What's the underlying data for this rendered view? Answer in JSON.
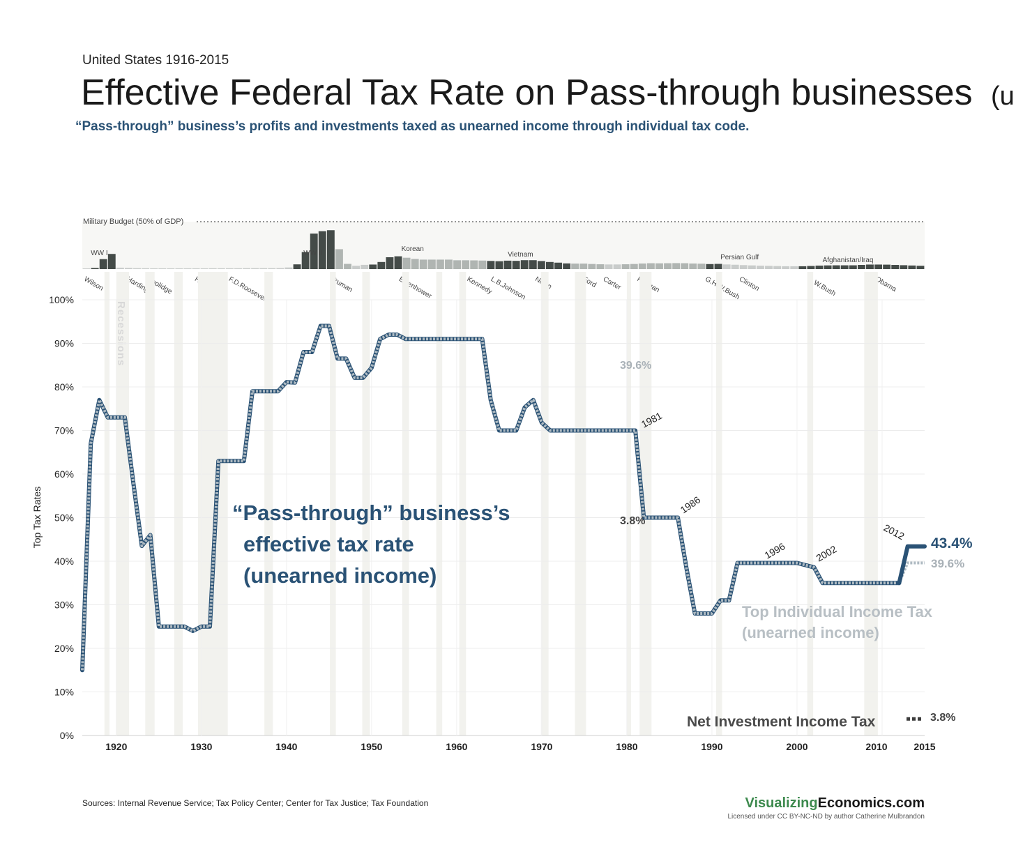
{
  "header": {
    "supertitle": "United States 1916-2015",
    "title": "Effective Federal Tax Rate on Pass-through businesses",
    "title_suffix": "(unearned)",
    "subtitle": "“Pass-through” business’s profits and investments taxed as unearned income through individual tax code."
  },
  "chart_data": {
    "type": "line",
    "title": "Effective Federal Tax Rate on Pass-through businesses (unearned)",
    "ylabel": "Top Tax Rates",
    "xlabel": "",
    "xlim": [
      1916,
      2015
    ],
    "ylim": [
      0,
      100
    ],
    "x_ticks": [
      1920,
      1930,
      1940,
      1950,
      1960,
      1970,
      1980,
      1990,
      2000,
      2010,
      2015
    ],
    "y_ticks": [
      "0%",
      "10%",
      "20%",
      "30%",
      "40%",
      "50%",
      "60%",
      "70%",
      "80%",
      "90%",
      "100%"
    ],
    "series": [
      {
        "name": "Top Individual Income Tax (unearned income)",
        "color": "#aebac2",
        "points": [
          [
            1916,
            15
          ],
          [
            1917,
            67
          ],
          [
            1918,
            77
          ],
          [
            1919,
            73
          ],
          [
            1921,
            73
          ],
          [
            1922,
            58
          ],
          [
            1923,
            43.5
          ],
          [
            1924,
            46
          ],
          [
            1925,
            25
          ],
          [
            1928,
            25
          ],
          [
            1929,
            24
          ],
          [
            1930,
            25
          ],
          [
            1931,
            25
          ],
          [
            1932,
            63
          ],
          [
            1935,
            63
          ],
          [
            1936,
            79
          ],
          [
            1939,
            79
          ],
          [
            1940,
            81.1
          ],
          [
            1941,
            81
          ],
          [
            1942,
            88
          ],
          [
            1943,
            88
          ],
          [
            1944,
            94
          ],
          [
            1945,
            94
          ],
          [
            1946,
            86.5
          ],
          [
            1947,
            86.5
          ],
          [
            1948,
            82.1
          ],
          [
            1949,
            82.1
          ],
          [
            1950,
            84.4
          ],
          [
            1951,
            91
          ],
          [
            1952,
            92
          ],
          [
            1953,
            92
          ],
          [
            1954,
            91
          ],
          [
            1963,
            91
          ],
          [
            1964,
            77
          ],
          [
            1965,
            70
          ],
          [
            1967,
            70
          ],
          [
            1968,
            75.3
          ],
          [
            1969,
            77
          ],
          [
            1970,
            71.8
          ],
          [
            1971,
            70
          ],
          [
            1981,
            70
          ],
          [
            1982,
            50
          ],
          [
            1986,
            50
          ],
          [
            1987,
            38.5
          ],
          [
            1988,
            28
          ],
          [
            1990,
            28
          ],
          [
            1991,
            31
          ],
          [
            1992,
            31
          ],
          [
            1993,
            39.6
          ],
          [
            2000,
            39.6
          ],
          [
            2001,
            39.1
          ],
          [
            2002,
            38.6
          ],
          [
            2003,
            35
          ],
          [
            2012,
            35
          ],
          [
            2013,
            39.6
          ],
          [
            2015,
            39.6
          ]
        ]
      },
      {
        "name": "“Pass-through” business’s effective tax rate (unearned income)",
        "color": "#2a5275",
        "points": [
          [
            2012,
            35
          ],
          [
            2013,
            43.4
          ],
          [
            2015,
            43.4
          ]
        ]
      },
      {
        "name": "Net Investment Income Tax",
        "color": "#3d3d3d",
        "points": [
          [
            2013,
            3.8
          ],
          [
            2014,
            3.8
          ]
        ]
      }
    ],
    "recessions": [
      [
        1918.6,
        1919.2
      ],
      [
        1920.0,
        1921.5
      ],
      [
        1923.4,
        1924.5
      ],
      [
        1926.8,
        1927.8
      ],
      [
        1929.6,
        1933.1
      ],
      [
        1937.4,
        1938.4
      ],
      [
        1945.1,
        1945.8
      ],
      [
        1948.9,
        1949.8
      ],
      [
        1953.6,
        1954.4
      ],
      [
        1957.6,
        1958.3
      ],
      [
        1960.3,
        1961.1
      ],
      [
        1969.9,
        1970.8
      ],
      [
        1973.9,
        1975.2
      ],
      [
        1980.0,
        1980.5
      ],
      [
        1981.5,
        1982.9
      ],
      [
        1990.5,
        1991.2
      ],
      [
        2001.2,
        2001.9
      ],
      [
        2007.9,
        2009.5
      ]
    ],
    "military_budget": {
      "label": "Military Budget (50% of GDP)",
      "max_pct_gdp": 50,
      "years": [
        1916,
        1917,
        1918,
        1919,
        1920,
        1921,
        1922,
        1923,
        1924,
        1925,
        1926,
        1927,
        1928,
        1929,
        1930,
        1931,
        1932,
        1933,
        1934,
        1935,
        1936,
        1937,
        1938,
        1939,
        1940,
        1941,
        1942,
        1943,
        1944,
        1945,
        1946,
        1947,
        1948,
        1949,
        1950,
        1951,
        1952,
        1953,
        1954,
        1955,
        1956,
        1957,
        1958,
        1959,
        1960,
        1961,
        1962,
        1963,
        1964,
        1965,
        1966,
        1967,
        1968,
        1969,
        1970,
        1971,
        1972,
        1973,
        1974,
        1975,
        1976,
        1977,
        1978,
        1979,
        1980,
        1981,
        1982,
        1983,
        1984,
        1985,
        1986,
        1987,
        1988,
        1989,
        1990,
        1991,
        1992,
        1993,
        1994,
        1995,
        1996,
        1997,
        1998,
        1999,
        2000,
        2001,
        2002,
        2003,
        2004,
        2005,
        2006,
        2007,
        2008,
        2009,
        2010,
        2011,
        2012,
        2013,
        2014,
        2015
      ],
      "values": [
        0.5,
        1.2,
        10.5,
        16,
        1.5,
        1.3,
        1,
        0.9,
        0.8,
        0.8,
        0.8,
        0.8,
        0.8,
        0.8,
        0.8,
        0.9,
        0.9,
        0.9,
        0.9,
        1,
        1,
        1,
        1,
        1.1,
        1.7,
        5,
        18,
        37.5,
        40,
        41,
        21,
        5.5,
        3.5,
        4.5,
        4.8,
        7.5,
        12.5,
        13.5,
        12,
        10.7,
        10,
        10,
        10,
        10,
        9.3,
        9.3,
        9.2,
        9,
        8.6,
        8.3,
        8.9,
        8.7,
        9.4,
        9.4,
        8.5,
        7.5,
        6.8,
        6,
        5.8,
        5.8,
        5.4,
        5.1,
        4.9,
        4.9,
        5.1,
        5.4,
        5.9,
        6.2,
        6.1,
        6.2,
        6.3,
        6.2,
        5.9,
        5.7,
        5.3,
        5.5,
        4.9,
        4.6,
        4.2,
        3.9,
        3.6,
        3.4,
        3.2,
        3,
        3,
        3,
        3.3,
        3.7,
        3.9,
        4,
        4,
        4,
        4.4,
        4.8,
        4.8,
        4.7,
        4.4,
        4.1,
        3.8,
        3.5
      ],
      "conflict_years": [
        1917,
        1918,
        1919,
        1941,
        1942,
        1943,
        1944,
        1945,
        1950,
        1951,
        1952,
        1953,
        1964,
        1965,
        1966,
        1967,
        1968,
        1969,
        1970,
        1971,
        1972,
        1973,
        1990,
        1991,
        2001,
        2002,
        2003,
        2004,
        2005,
        2006,
        2007,
        2008,
        2009,
        2010,
        2011,
        2012,
        2013,
        2014,
        2015
      ],
      "war_labels": [
        {
          "text": "WW I",
          "year": 1917
        },
        {
          "text": "WW II",
          "year": 1942
        },
        {
          "text": "Korean",
          "year": 1953.5
        },
        {
          "text": "Vietnam",
          "year": 1966
        },
        {
          "text": "Persian Gulf",
          "year": 1991
        },
        {
          "text": "Afghanistan/Iraq",
          "year": 2003
        }
      ]
    },
    "presidents": [
      {
        "name": "Wilson",
        "year": 1916
      },
      {
        "name": "Harding",
        "year": 1921
      },
      {
        "name": "Coolidge",
        "year": 1923.4
      },
      {
        "name": "Hoover",
        "year": 1929
      },
      {
        "name": "F.D.Roosevelt",
        "year": 1933
      },
      {
        "name": "Truman",
        "year": 1945
      },
      {
        "name": "Eisenhower",
        "year": 1953
      },
      {
        "name": "Kennedy",
        "year": 1961
      },
      {
        "name": "L.B.Johnson",
        "year": 1963.8
      },
      {
        "name": "Nixon",
        "year": 1969
      },
      {
        "name": "Ford",
        "year": 1974.6
      },
      {
        "name": "Carter",
        "year": 1977
      },
      {
        "name": "Reagan",
        "year": 1981
      },
      {
        "name": "G.H.W.Bush",
        "year": 1989
      },
      {
        "name": "Clinton",
        "year": 1993
      },
      {
        "name": "G.W.Bush",
        "year": 2001
      },
      {
        "name": "Obama",
        "year": 2009
      }
    ],
    "annotations": {
      "recessions_label": "Recessions",
      "main_series_label": [
        "“Pass-through” business’s",
        "effective tax rate",
        "(unearned income)"
      ],
      "gray_series_label": [
        "Top Individual Income Tax",
        "(unearned income)"
      ],
      "nit_label": "Net Investment Income Tax",
      "year_1981": "1981",
      "year_1986": "1986",
      "year_1996": "1996",
      "year_2002": "2002",
      "year_2012": "2012",
      "note_39_6": "39.6%",
      "note_3_8": "3.8%",
      "end_main_value": "43.4%",
      "end_gray_value": "39.6%",
      "end_nit_value": "3.8%"
    }
  },
  "footer": {
    "sources": "Sources: Internal Revenue Service; Tax Policy Center; Center for Tax Justice; Tax Foundation",
    "brand_a": "Visualizing",
    "brand_b": "Economics.com",
    "license": "Licensed under CC BY-NC-ND by author Catherine Mulbrandon"
  }
}
